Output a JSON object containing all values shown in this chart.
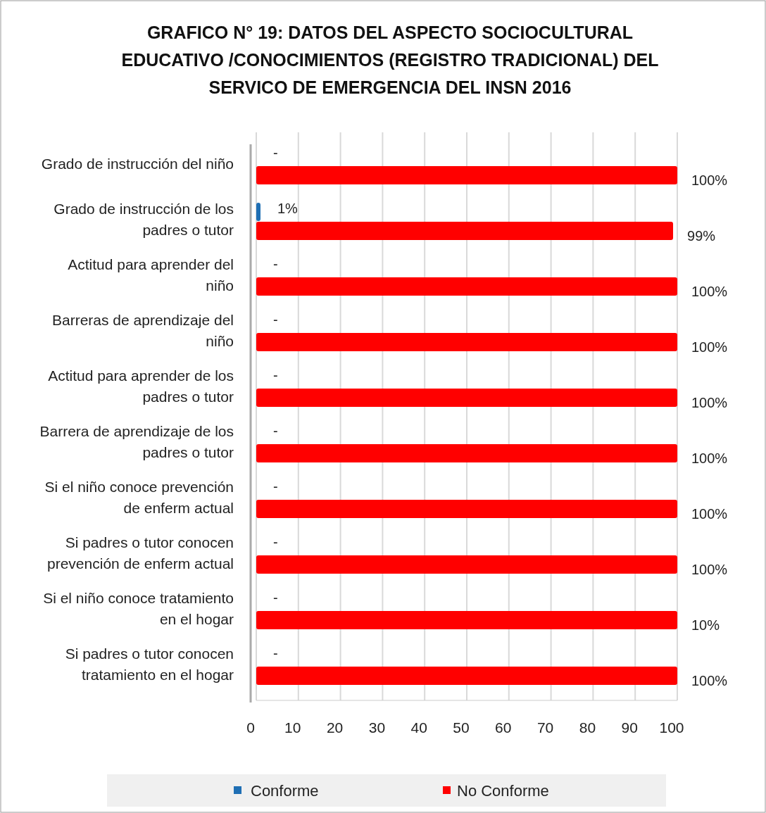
{
  "chart_data": {
    "type": "bar",
    "orientation": "horizontal",
    "title": "GRAFICO N° 19: DATOS DEL ASPECTO SOCIOCULTURAL EDUCATIVO /CONOCIMIENTOS (REGISTRO TRADICIONAL) DEL SERVICO DE EMERGENCIA DEL INSN 2016",
    "categories": [
      "Grado de instrucción del niño",
      "Grado de instrucción de los padres o tutor",
      "Actitud para aprender del niño",
      "Barreras de aprendizaje del niño",
      "Actitud para aprender de los padres o tutor",
      "Barrera de aprendizaje de los padres o tutor",
      "Si el niño conoce prevención de enferm actual",
      "Si padres o tutor conocen prevención de enferm actual",
      "Si el niño conoce tratamiento en el hogar",
      "Si padres o tutor conocen tratamiento en el hogar"
    ],
    "series": [
      {
        "name": "Conforme",
        "color": "#1f6fb4",
        "values": [
          0,
          1,
          0,
          0,
          0,
          0,
          0,
          0,
          0,
          0
        ],
        "value_labels": [
          "-",
          "1%",
          "-",
          "-",
          "-",
          "-",
          "-",
          "-",
          "-",
          "-"
        ]
      },
      {
        "name": "No Conforme",
        "color": "#ff0000",
        "values": [
          100,
          99,
          100,
          100,
          100,
          100,
          100,
          100,
          100,
          100
        ],
        "value_labels": [
          "100%",
          "99%",
          "100%",
          "100%",
          "100%",
          "100%",
          "100%",
          "100%",
          null,
          "100%"
        ]
      }
    ],
    "xlim": [
      0,
      100
    ],
    "xticks": [
      0,
      10,
      20,
      30,
      40,
      50,
      60,
      70,
      80,
      90,
      100
    ],
    "grid": "x",
    "legend": "bottom",
    "annotations": [
      {
        "text": "10%",
        "x": 100,
        "y": "Si el niño conoce tratamiento en el hogar"
      }
    ]
  }
}
